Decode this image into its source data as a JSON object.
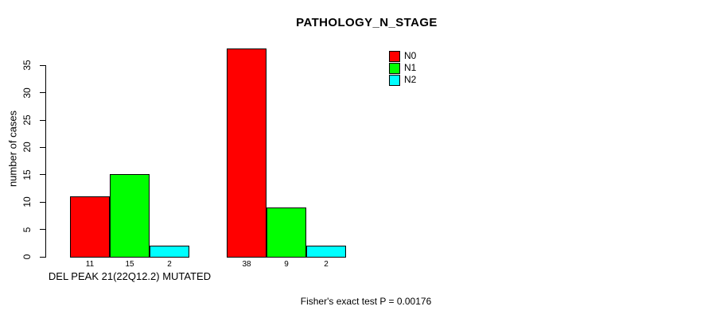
{
  "caption": "Fisher's exact test P = 0.00176",
  "chart_data": {
    "type": "bar",
    "title": "PATHOLOGY_N_STAGE",
    "ylabel": "number of cases",
    "xlabel": "DEL PEAK 21(22Q12.2) MUTATED",
    "yticks": [
      0,
      5,
      10,
      15,
      20,
      25,
      30,
      35
    ],
    "ylim": [
      0,
      38
    ],
    "grid": false,
    "legend_position": "top-right",
    "series": [
      {
        "name": "N0",
        "color": "#FF0000"
      },
      {
        "name": "N1",
        "color": "#00FF00"
      },
      {
        "name": "N2",
        "color": "#00FFFF"
      }
    ],
    "groups": [
      {
        "label": "DEL PEAK 21(22Q12.2) MUTATED",
        "values": [
          11,
          15,
          2
        ]
      },
      {
        "label": "",
        "values": [
          38,
          9,
          2
        ]
      }
    ],
    "annotation": "Fisher's exact test P = 0.00176"
  }
}
